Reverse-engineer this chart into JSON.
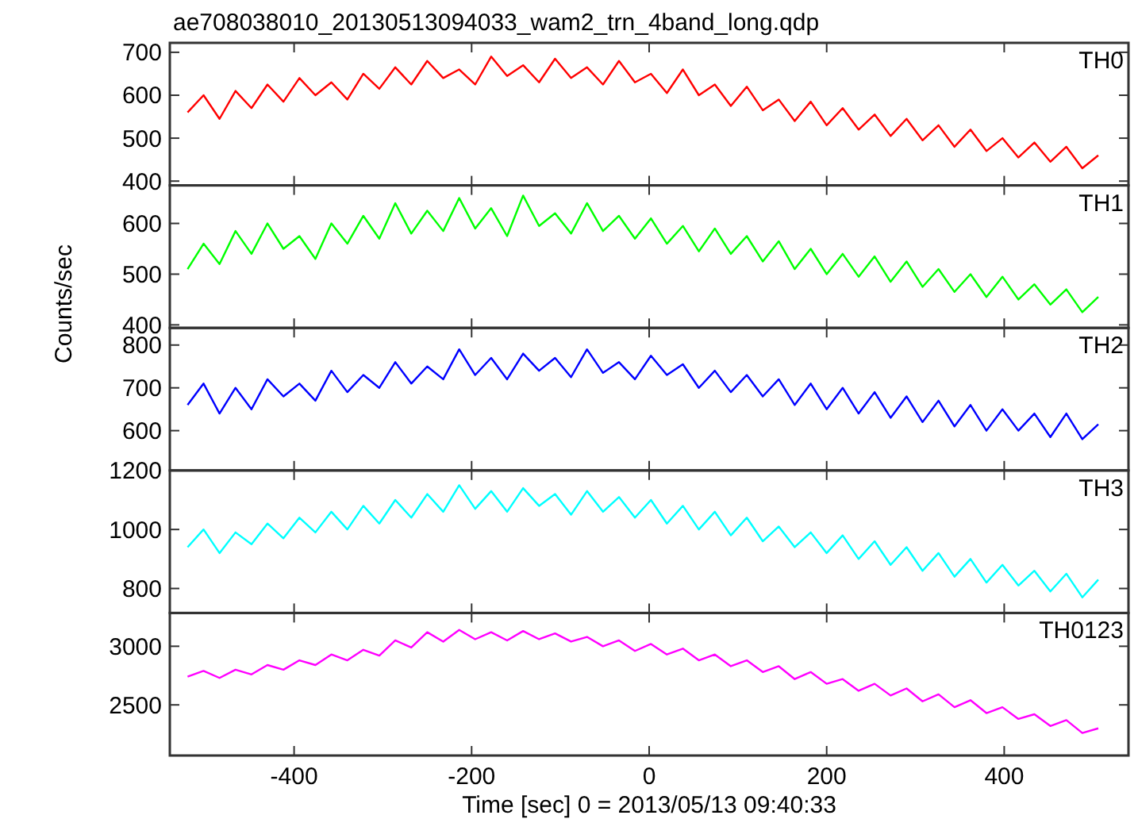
{
  "chart_data": [
    {
      "type": "line",
      "title": "ae708038010_20130513094033_wam2_trn_4band_long.qdp",
      "xlim": [
        -540,
        540
      ],
      "xticks": [
        -400,
        -200,
        0,
        200,
        400
      ],
      "ylim": [
        390,
        722
      ],
      "yticks": [
        400,
        500,
        600,
        700
      ],
      "tick_labels": "y",
      "x": [
        -520,
        -502,
        -484,
        -466,
        -448,
        -430,
        -412,
        -394,
        -376,
        -358,
        -340,
        -322,
        -304,
        -286,
        -268,
        -250,
        -232,
        -214,
        -196,
        -178,
        -160,
        -142,
        -124,
        -106,
        -88,
        -70,
        -52,
        -34,
        -16,
        2,
        20,
        38,
        56,
        74,
        92,
        110,
        128,
        146,
        164,
        182,
        200,
        218,
        236,
        254,
        272,
        290,
        308,
        326,
        344,
        362,
        380,
        398,
        416,
        434,
        452,
        470,
        488,
        506
      ],
      "series": [
        {
          "name": "TH0",
          "color": "#ff0000",
          "values": [
            560,
            600,
            545,
            610,
            570,
            625,
            585,
            640,
            600,
            630,
            590,
            650,
            615,
            665,
            625,
            680,
            640,
            660,
            625,
            690,
            645,
            670,
            630,
            685,
            640,
            665,
            625,
            680,
            630,
            650,
            605,
            660,
            600,
            625,
            575,
            620,
            565,
            590,
            540,
            585,
            530,
            570,
            520,
            555,
            505,
            545,
            495,
            530,
            480,
            520,
            470,
            500,
            455,
            490,
            445,
            480,
            430,
            460
          ]
        }
      ]
    },
    {
      "type": "line",
      "xlim": [
        -540,
        540
      ],
      "xticks": [
        -400,
        -200,
        0,
        200,
        400
      ],
      "ylim": [
        394,
        675
      ],
      "yticks": [
        400,
        500,
        600
      ],
      "tick_labels": "y",
      "x": [
        -520,
        -502,
        -484,
        -466,
        -448,
        -430,
        -412,
        -394,
        -376,
        -358,
        -340,
        -322,
        -304,
        -286,
        -268,
        -250,
        -232,
        -214,
        -196,
        -178,
        -160,
        -142,
        -124,
        -106,
        -88,
        -70,
        -52,
        -34,
        -16,
        2,
        20,
        38,
        56,
        74,
        92,
        110,
        128,
        146,
        164,
        182,
        200,
        218,
        236,
        254,
        272,
        290,
        308,
        326,
        344,
        362,
        380,
        398,
        416,
        434,
        452,
        470,
        488,
        506
      ],
      "series": [
        {
          "name": "TH1",
          "color": "#00ff00",
          "values": [
            510,
            560,
            520,
            585,
            540,
            600,
            550,
            575,
            530,
            600,
            560,
            615,
            570,
            640,
            580,
            625,
            585,
            650,
            590,
            630,
            575,
            655,
            595,
            620,
            580,
            640,
            585,
            615,
            570,
            610,
            560,
            595,
            545,
            590,
            540,
            575,
            525,
            565,
            510,
            550,
            500,
            540,
            495,
            535,
            485,
            525,
            475,
            510,
            465,
            500,
            455,
            495,
            450,
            480,
            440,
            470,
            425,
            455
          ]
        }
      ]
    },
    {
      "type": "line",
      "ylabel": "Counts/sec",
      "xlim": [
        -540,
        540
      ],
      "xticks": [
        -400,
        -200,
        0,
        200,
        400
      ],
      "ylim": [
        507,
        840
      ],
      "yticks": [
        600,
        700,
        800
      ],
      "tick_labels": "y",
      "x": [
        -520,
        -502,
        -484,
        -466,
        -448,
        -430,
        -412,
        -394,
        -376,
        -358,
        -340,
        -322,
        -304,
        -286,
        -268,
        -250,
        -232,
        -214,
        -196,
        -178,
        -160,
        -142,
        -124,
        -106,
        -88,
        -70,
        -52,
        -34,
        -16,
        2,
        20,
        38,
        56,
        74,
        92,
        110,
        128,
        146,
        164,
        182,
        200,
        218,
        236,
        254,
        272,
        290,
        308,
        326,
        344,
        362,
        380,
        398,
        416,
        434,
        452,
        470,
        488,
        506
      ],
      "series": [
        {
          "name": "TH2",
          "color": "#0000ff",
          "values": [
            660,
            710,
            640,
            700,
            650,
            720,
            680,
            710,
            670,
            740,
            690,
            730,
            700,
            760,
            710,
            750,
            720,
            790,
            730,
            770,
            720,
            780,
            740,
            770,
            725,
            790,
            735,
            760,
            720,
            775,
            730,
            755,
            700,
            740,
            690,
            730,
            680,
            720,
            660,
            710,
            650,
            700,
            640,
            690,
            630,
            680,
            620,
            670,
            610,
            660,
            600,
            650,
            600,
            640,
            585,
            640,
            580,
            615
          ]
        }
      ]
    },
    {
      "type": "line",
      "xlim": [
        -540,
        540
      ],
      "xticks": [
        -400,
        -200,
        0,
        200,
        400
      ],
      "ylim": [
        717,
        1200
      ],
      "yticks": [
        800,
        1000,
        1200
      ],
      "tick_labels": "y",
      "x": [
        -520,
        -502,
        -484,
        -466,
        -448,
        -430,
        -412,
        -394,
        -376,
        -358,
        -340,
        -322,
        -304,
        -286,
        -268,
        -250,
        -232,
        -214,
        -196,
        -178,
        -160,
        -142,
        -124,
        -106,
        -88,
        -70,
        -52,
        -34,
        -16,
        2,
        20,
        38,
        56,
        74,
        92,
        110,
        128,
        146,
        164,
        182,
        200,
        218,
        236,
        254,
        272,
        290,
        308,
        326,
        344,
        362,
        380,
        398,
        416,
        434,
        452,
        470,
        488,
        506
      ],
      "series": [
        {
          "name": "TH3",
          "color": "#00ffff",
          "values": [
            940,
            1000,
            920,
            990,
            950,
            1020,
            970,
            1040,
            990,
            1060,
            1000,
            1080,
            1020,
            1100,
            1040,
            1120,
            1060,
            1150,
            1070,
            1130,
            1060,
            1140,
            1080,
            1120,
            1050,
            1130,
            1060,
            1110,
            1040,
            1100,
            1020,
            1080,
            1000,
            1060,
            980,
            1040,
            960,
            1010,
            940,
            990,
            920,
            980,
            900,
            960,
            880,
            940,
            860,
            920,
            840,
            900,
            820,
            880,
            810,
            860,
            790,
            850,
            770,
            830
          ]
        }
      ]
    },
    {
      "type": "line",
      "xlabel": "Time [sec] 0 = 2013/05/13 09:40:33",
      "xlim": [
        -540,
        540
      ],
      "xticks": [
        -400,
        -200,
        0,
        200,
        400
      ],
      "ylim": [
        2068,
        3284
      ],
      "yticks": [
        2500,
        3000
      ],
      "x": [
        -520,
        -502,
        -484,
        -466,
        -448,
        -430,
        -412,
        -394,
        -376,
        -358,
        -340,
        -322,
        -304,
        -286,
        -268,
        -250,
        -232,
        -214,
        -196,
        -178,
        -160,
        -142,
        -124,
        -106,
        -88,
        -70,
        -52,
        -34,
        -16,
        2,
        20,
        38,
        56,
        74,
        92,
        110,
        128,
        146,
        164,
        182,
        200,
        218,
        236,
        254,
        272,
        290,
        308,
        326,
        344,
        362,
        380,
        398,
        416,
        434,
        452,
        470,
        488,
        506
      ],
      "series": [
        {
          "name": "TH0123",
          "color": "#ff00ff",
          "values": [
            2740,
            2790,
            2730,
            2800,
            2760,
            2840,
            2800,
            2880,
            2840,
            2930,
            2880,
            2970,
            2920,
            3050,
            2990,
            3120,
            3040,
            3140,
            3060,
            3120,
            3050,
            3130,
            3060,
            3110,
            3040,
            3080,
            3000,
            3050,
            2960,
            3020,
            2930,
            2980,
            2880,
            2930,
            2830,
            2880,
            2780,
            2830,
            2720,
            2780,
            2680,
            2720,
            2620,
            2680,
            2580,
            2640,
            2530,
            2590,
            2480,
            2540,
            2430,
            2480,
            2380,
            2420,
            2320,
            2370,
            2260,
            2300
          ]
        }
      ]
    }
  ]
}
